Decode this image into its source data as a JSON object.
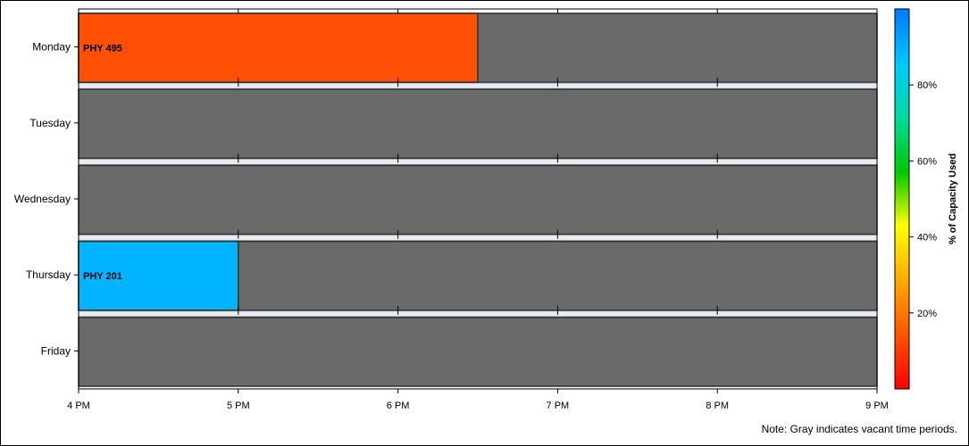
{
  "chart_data": {
    "type": "bar",
    "orientation": "horizontal",
    "categories": [
      "Monday",
      "Tuesday",
      "Wednesday",
      "Thursday",
      "Friday"
    ],
    "x_ticks": [
      "4 PM",
      "5 PM",
      "6 PM",
      "7 PM",
      "8 PM",
      "9 PM"
    ],
    "x_range_hours": [
      16,
      21
    ],
    "bookings": [
      {
        "day": "Monday",
        "start_hour": 16,
        "end_hour": 18.5,
        "label": "PHY 495",
        "pct_capacity": 28,
        "color": "#ff5005"
      },
      {
        "day": "Thursday",
        "start_hour": 16,
        "end_hour": 17,
        "label": "PHY 201",
        "pct_capacity": 87,
        "color": "#00b4ff"
      }
    ],
    "vacant_color": "#6a6a6a",
    "colorbar": {
      "title": "% of Capacity Used",
      "ticks": [
        "20%",
        "40%",
        "60%",
        "80%"
      ],
      "tick_values": [
        20,
        40,
        60,
        80
      ],
      "range": [
        0,
        100
      ],
      "stops": [
        "#ff0000",
        "#ff5500",
        "#ffaa00",
        "#ffff00",
        "#00c800",
        "#00dca0",
        "#00c8ff",
        "#0078ff"
      ]
    },
    "note": "Note: Gray indicates vacant time periods.",
    "grid": false
  }
}
